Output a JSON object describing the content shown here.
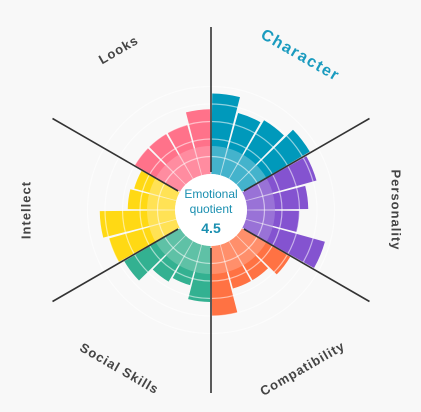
{
  "center": {
    "title_line1": "Emotional",
    "title_line2": "quotient",
    "score": "4.5"
  },
  "active_category": "Character",
  "chart_data": {
    "type": "radial-bar",
    "rings": 5,
    "categories": [
      {
        "name": "Character",
        "color": "#0099bb",
        "faded": "#7cc8db",
        "values": [
          4.6,
          3.7,
          3.9,
          4.5
        ]
      },
      {
        "name": "Personality",
        "color": "#7a44cc",
        "faded": "#ab8ddd",
        "values": [
          4.2,
          3.5,
          3.0,
          4.7
        ]
      },
      {
        "name": "Compatibility",
        "color": "#ff6633",
        "faded": "#ffa88c",
        "values": [
          3.2,
          2.6,
          2.6,
          4.0
        ]
      },
      {
        "name": "Social Skills",
        "color": "#22aa88",
        "faded": "#83cdb8",
        "values": [
          3.2,
          2.4,
          2.7,
          3.7
        ]
      },
      {
        "name": "Intellect",
        "color": "#ffd600",
        "faded": "#ffe98a",
        "values": [
          4.0,
          4.3,
          2.7,
          2.5
        ]
      },
      {
        "name": "Looks",
        "color": "#ff6680",
        "faded": "#ffa3b2",
        "values": [
          3.0,
          3.0,
          3.0,
          3.7
        ]
      }
    ]
  }
}
